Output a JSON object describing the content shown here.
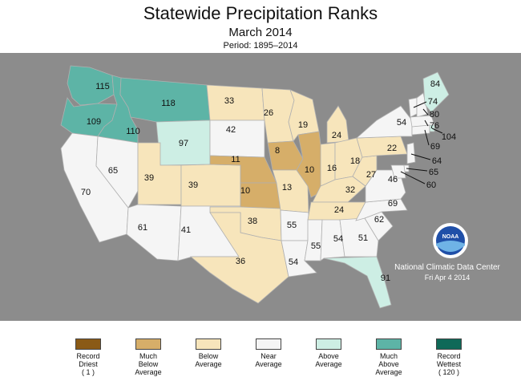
{
  "header": {
    "title": "Statewide Precipitation Ranks",
    "subtitle": "March 2014",
    "period": "Period: 1895–2014"
  },
  "source": {
    "name": "National Climatic Data Center",
    "date": "Fri Apr  4 2014",
    "logo_text": "NOAA"
  },
  "colors": {
    "ocean": "#8c8c8c",
    "border": "#b0b0b0",
    "record_driest": "#8a5a16",
    "much_below": "#d6ae69",
    "below": "#f7e5bb",
    "near": "#f5f5f5",
    "above": "#cdeee4",
    "much_above": "#5db4a6",
    "record_wettest": "#0f6958"
  },
  "legend": [
    {
      "label": "Record\nDriest",
      "count": "( 1 )",
      "color": "#8a5a16"
    },
    {
      "label": "Much\nBelow\nAverage",
      "count": "",
      "color": "#d6ae69"
    },
    {
      "label": "Below\nAverage",
      "count": "",
      "color": "#f7e5bb"
    },
    {
      "label": "Near\nAverage",
      "count": "",
      "color": "#f5f5f5"
    },
    {
      "label": "Above\nAverage",
      "count": "",
      "color": "#cdeee4"
    },
    {
      "label": "Much\nAbove\nAverage",
      "count": "",
      "color": "#5db4a6"
    },
    {
      "label": "Record\nWettest",
      "count": "( 120 )",
      "color": "#0f6958"
    }
  ],
  "states": [
    {
      "code": "WA",
      "rank": "115",
      "category": "much_above"
    },
    {
      "code": "OR",
      "rank": "109",
      "category": "much_above"
    },
    {
      "code": "ID",
      "rank": "110",
      "category": "much_above"
    },
    {
      "code": "MT",
      "rank": "118",
      "category": "much_above"
    },
    {
      "code": "WY",
      "rank": "97",
      "category": "above"
    },
    {
      "code": "CA",
      "rank": "70",
      "category": "near"
    },
    {
      "code": "NV",
      "rank": "65",
      "category": "near"
    },
    {
      "code": "UT",
      "rank": "39",
      "category": "below"
    },
    {
      "code": "CO",
      "rank": "39",
      "category": "below"
    },
    {
      "code": "AZ",
      "rank": "61",
      "category": "near"
    },
    {
      "code": "NM",
      "rank": "41",
      "category": "near"
    },
    {
      "code": "ND",
      "rank": "33",
      "category": "below"
    },
    {
      "code": "SD",
      "rank": "42",
      "category": "near"
    },
    {
      "code": "NE",
      "rank": "11",
      "category": "much_below"
    },
    {
      "code": "KS",
      "rank": "10",
      "category": "much_below"
    },
    {
      "code": "OK",
      "rank": "38",
      "category": "below"
    },
    {
      "code": "TX",
      "rank": "36",
      "category": "below"
    },
    {
      "code": "MN",
      "rank": "26",
      "category": "below"
    },
    {
      "code": "IA",
      "rank": "8",
      "category": "much_below"
    },
    {
      "code": "MO",
      "rank": "13",
      "category": "below"
    },
    {
      "code": "AR",
      "rank": "55",
      "category": "near"
    },
    {
      "code": "LA",
      "rank": "54",
      "category": "near"
    },
    {
      "code": "WI",
      "rank": "19",
      "category": "below"
    },
    {
      "code": "IL",
      "rank": "10",
      "category": "much_below"
    },
    {
      "code": "MI",
      "rank": "24",
      "category": "below"
    },
    {
      "code": "IN",
      "rank": "16",
      "category": "below"
    },
    {
      "code": "OH",
      "rank": "18",
      "category": "below"
    },
    {
      "code": "KY",
      "rank": "32",
      "category": "below"
    },
    {
      "code": "TN",
      "rank": "24",
      "category": "below"
    },
    {
      "code": "MS",
      "rank": "55",
      "category": "near"
    },
    {
      "code": "AL",
      "rank": "54",
      "category": "near"
    },
    {
      "code": "GA",
      "rank": "51",
      "category": "near"
    },
    {
      "code": "FL",
      "rank": "91",
      "category": "above"
    },
    {
      "code": "SC",
      "rank": "62",
      "category": "near"
    },
    {
      "code": "NC",
      "rank": "69",
      "category": "near"
    },
    {
      "code": "VA",
      "rank": "46",
      "category": "near"
    },
    {
      "code": "WV",
      "rank": "27",
      "category": "below"
    },
    {
      "code": "PA",
      "rank": "22",
      "category": "below"
    },
    {
      "code": "NY",
      "rank": "54",
      "category": "near"
    },
    {
      "code": "VT",
      "rank": "74",
      "category": "near"
    },
    {
      "code": "NH",
      "rank": "80",
      "category": "near"
    },
    {
      "code": "ME",
      "rank": "84",
      "category": "above"
    },
    {
      "code": "MA",
      "rank": "76",
      "category": "near"
    },
    {
      "code": "RI",
      "rank": "104",
      "category": "above"
    },
    {
      "code": "CT",
      "rank": "69",
      "category": "near"
    },
    {
      "code": "NJ",
      "rank": "64",
      "category": "near"
    },
    {
      "code": "DE",
      "rank": "65",
      "category": "near"
    },
    {
      "code": "MD",
      "rank": "60",
      "category": "near"
    }
  ]
}
